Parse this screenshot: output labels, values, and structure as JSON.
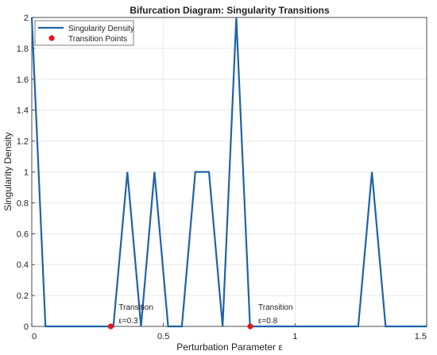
{
  "chart_data": {
    "type": "line",
    "title": "Bifurcation Diagram: Singularity Transitions",
    "xlabel": "Perturbation  Parameter  ε",
    "ylabel": "Singularity Density",
    "xlim": [
      0,
      1.5
    ],
    "ylim": [
      0,
      2
    ],
    "xticks": [
      0,
      0.5,
      1,
      1.5
    ],
    "xtick_labels": [
      "0",
      "0.5",
      "1",
      "1.5"
    ],
    "yticks": [
      0,
      0.2,
      0.4,
      0.6,
      0.8,
      1,
      1.2,
      1.4,
      1.6,
      1.8,
      2
    ],
    "ytick_labels": [
      "0",
      "0.2",
      "0.4",
      "0.6",
      "0.8",
      "1",
      "1.2",
      "1.4",
      "1.6",
      "1.8",
      "2"
    ],
    "grid": true,
    "legend_position": "top-left",
    "series": [
      {
        "name": "Singularity Density",
        "color": "#1f63a8",
        "x": [
          0,
          0.052,
          0.31,
          0.363,
          0.415,
          0.466,
          0.518,
          0.57,
          0.621,
          0.673,
          0.725,
          0.777,
          0.829,
          1.24,
          1.292,
          1.344,
          1.5
        ],
        "y": [
          2,
          0,
          0,
          1,
          0,
          1,
          0,
          0,
          1,
          1,
          0,
          2,
          0,
          0,
          1,
          0,
          0
        ]
      },
      {
        "name": "Transition Points",
        "type": "scatter",
        "color": "#e8141a",
        "x": [
          0.3,
          0.83
        ],
        "y": [
          0,
          0
        ]
      }
    ],
    "annotations": [
      {
        "line1": "Transition",
        "line2": "ε=0.3",
        "x": 0.3,
        "y": 0
      },
      {
        "line1": "Transition",
        "line2": "ε=0.8",
        "x": 0.83,
        "y": 0
      }
    ]
  }
}
